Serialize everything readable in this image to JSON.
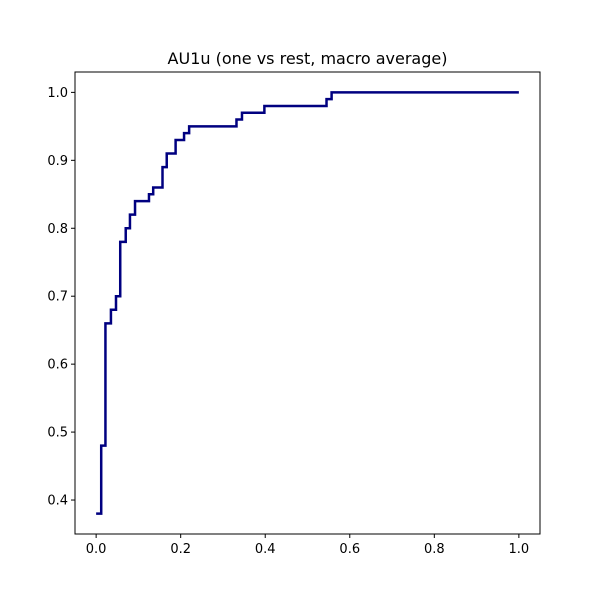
{
  "chart_data": {
    "type": "line",
    "title": "AU1u (one vs rest, macro average)",
    "xlabel": "",
    "ylabel": "",
    "xlim": [
      -0.05,
      1.05
    ],
    "ylim": [
      0.35,
      1.03
    ],
    "x_ticks": [
      0.0,
      0.2,
      0.4,
      0.6,
      0.8,
      1.0
    ],
    "x_tick_labels": [
      "0.0",
      "0.2",
      "0.4",
      "0.6",
      "0.8",
      "1.0"
    ],
    "y_ticks": [
      0.4,
      0.5,
      0.6,
      0.7,
      0.8,
      0.9,
      1.0
    ],
    "y_tick_labels": [
      "0.4",
      "0.5",
      "0.6",
      "0.7",
      "0.8",
      "0.9",
      "1.0"
    ],
    "grid": false,
    "legend": null,
    "series": [
      {
        "color": "#000080",
        "step": true,
        "x": [
          0.0,
          0.012,
          0.012,
          0.022,
          0.022,
          0.035,
          0.035,
          0.047,
          0.047,
          0.057,
          0.057,
          0.07,
          0.07,
          0.08,
          0.08,
          0.092,
          0.092,
          0.125,
          0.125,
          0.135,
          0.135,
          0.157,
          0.157,
          0.167,
          0.167,
          0.188,
          0.188,
          0.208,
          0.208,
          0.22,
          0.22,
          0.332,
          0.332,
          0.345,
          0.345,
          0.398,
          0.398,
          0.545,
          0.545,
          0.557,
          0.557,
          1.0
        ],
        "y": [
          0.38,
          0.38,
          0.48,
          0.48,
          0.66,
          0.66,
          0.68,
          0.68,
          0.7,
          0.7,
          0.78,
          0.78,
          0.8,
          0.8,
          0.82,
          0.82,
          0.84,
          0.84,
          0.85,
          0.85,
          0.86,
          0.86,
          0.89,
          0.89,
          0.91,
          0.91,
          0.93,
          0.93,
          0.94,
          0.94,
          0.95,
          0.95,
          0.96,
          0.96,
          0.97,
          0.97,
          0.98,
          0.98,
          0.99,
          0.99,
          1.0,
          1.0
        ]
      }
    ]
  }
}
